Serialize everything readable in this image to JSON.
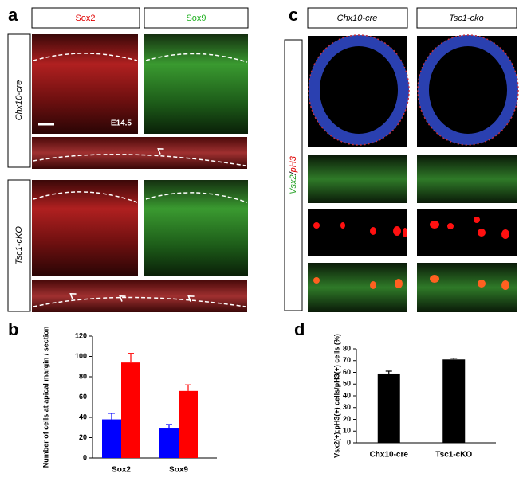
{
  "panel_a": {
    "label": "a",
    "col_headers": [
      "Sox2",
      "Sox9"
    ],
    "row_labels": [
      "Chx10-cre",
      "Tsc1-cKO"
    ],
    "stage": "E14.5"
  },
  "panel_b": {
    "label": "b"
  },
  "panel_c": {
    "label": "c",
    "col_headers": [
      "Chx10-cre",
      "Tsc1-cko"
    ],
    "row_label_green": "Vsx2",
    "row_label_sep": "/",
    "row_label_red": "pH3"
  },
  "panel_d": {
    "label": "d"
  },
  "chart_data": [
    {
      "type": "bar",
      "ylabel": "Number of cells at apical margin / section",
      "categories": [
        "Sox2",
        "Sox9"
      ],
      "series": [
        {
          "color": "#0000ff",
          "values": [
            38,
            29
          ],
          "errors": [
            6,
            4
          ]
        },
        {
          "color": "#ff0000",
          "values": [
            94,
            66
          ],
          "errors": [
            9,
            6
          ]
        }
      ],
      "ylim": [
        0,
        120
      ],
      "yticks": [
        0,
        20,
        40,
        60,
        80,
        100,
        120
      ]
    },
    {
      "type": "bar",
      "ylabel": "Vsx2(+);pH3(+) cells/pH3(+) cells (%)",
      "categories": [
        "Chx10-cre",
        "Tsc1-cKO"
      ],
      "series": [
        {
          "color": "#000000",
          "values": [
            59,
            71
          ],
          "errors": [
            2,
            1
          ]
        }
      ],
      "ylim": [
        0,
        80
      ],
      "yticks": [
        0,
        10,
        20,
        30,
        40,
        50,
        60,
        70,
        80
      ]
    }
  ]
}
